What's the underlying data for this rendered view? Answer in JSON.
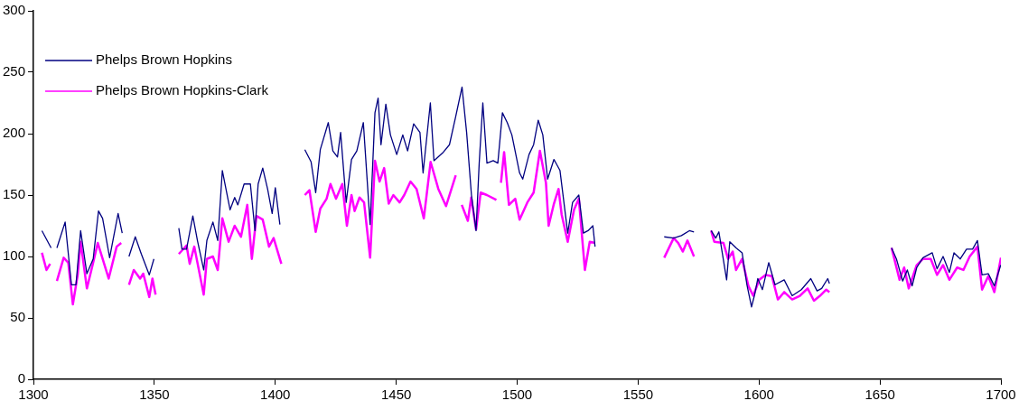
{
  "chart_data": {
    "type": "line",
    "xlim": [
      1300,
      1700
    ],
    "xticks": [
      1300,
      1350,
      1400,
      1450,
      1500,
      1550,
      1600,
      1650,
      1700
    ],
    "ylim": [
      0,
      300
    ],
    "yticks": [
      0,
      50,
      100,
      150,
      200,
      250,
      300
    ],
    "grid": false,
    "legend": "top left",
    "marker": "none",
    "line_style": "solid",
    "series": [
      {
        "name": "Phelps Brown Hopkins",
        "color": "#000080",
        "x": [
          1303.5,
          1307.3,
          1308.5,
          1309.7,
          1313.1,
          1315.7,
          1317.6,
          1319.5,
          1322.1,
          1324.7,
          1326.9,
          1328.6,
          1331.5,
          1335.0,
          1336.7,
          1338,
          1339.5,
          1342.1,
          1344.6,
          1347.9,
          1349.8,
          1355,
          1360.1,
          1361.4,
          1363.3,
          1365.9,
          1367.8,
          1370.4,
          1371.7,
          1374.2,
          1376.2,
          1378.1,
          1381.3,
          1383.2,
          1384.5,
          1387.1,
          1389.7,
          1391.6,
          1392.9,
          1394.8,
          1396.8,
          1398.7,
          1400.0,
          1401.9,
          1407,
          1412.2,
          1414.8,
          1416.7,
          1418.6,
          1421.9,
          1423.8,
          1425.7,
          1427.0,
          1429.3,
          1431.5,
          1433.7,
          1436.4,
          1439.2,
          1441.2,
          1442.5,
          1443.7,
          1445.7,
          1447.6,
          1450.2,
          1452.7,
          1454.7,
          1457.2,
          1459.8,
          1461.1,
          1464.1,
          1465.6,
          1469.5,
          1472.0,
          1474.6,
          1477.2,
          1479.1,
          1481.1,
          1483.0,
          1484.3,
          1485.8,
          1487.5,
          1490.1,
          1492.0,
          1493.9,
          1495.9,
          1497.8,
          1501.0,
          1502.3,
          1504.9,
          1506.8,
          1508.7,
          1510.6,
          1512.6,
          1515.2,
          1517.7,
          1520.9,
          1522.9,
          1525.5,
          1527.4,
          1529.3,
          1531.3,
          1532.2,
          1546,
          1560.8,
          1564.7,
          1567.9,
          1571.2,
          1573.1,
          1576,
          1580.2,
          1582.1,
          1583.4,
          1586.6,
          1587.9,
          1590.5,
          1593.0,
          1595.0,
          1596.9,
          1598.2,
          1599.5,
          1601.4,
          1604.0,
          1606.6,
          1610.4,
          1613.7,
          1617.5,
          1621.4,
          1624.0,
          1625.9,
          1628.4,
          1629.1,
          1641,
          1654.8,
          1656.8,
          1659.4,
          1661.3,
          1663.3,
          1665.2,
          1667.8,
          1671.6,
          1673.6,
          1676.1,
          1678.7,
          1680.6,
          1683.2,
          1685.8,
          1688.3,
          1690.3,
          1692.2,
          1694.8,
          1697.3,
          1699.9
        ],
        "values": [
          121,
          107,
          null,
          107,
          128,
          77,
          77,
          121,
          86,
          98,
          137,
          131,
          99,
          135,
          119,
          null,
          100,
          116,
          102,
          85,
          98,
          null,
          123,
          106,
          106,
          133,
          113,
          89,
          113,
          128,
          113,
          170,
          138,
          148,
          142,
          159,
          159,
          121,
          159,
          172,
          155,
          135,
          156,
          126,
          null,
          187,
          177,
          152,
          187,
          209,
          186,
          181,
          201,
          144,
          179,
          186,
          209,
          126,
          217,
          229,
          191,
          224,
          199,
          183,
          199,
          186,
          208,
          201,
          168,
          225,
          178,
          185,
          191,
          214,
          238,
          201,
          150,
          121,
          176,
          225,
          176,
          178,
          176,
          217,
          209,
          199,
          168,
          163,
          183,
          191,
          211,
          199,
          163,
          179,
          170,
          119,
          144,
          150,
          119,
          121,
          125,
          108,
          null,
          116,
          115,
          117,
          121,
          120,
          null,
          121,
          115,
          120,
          81,
          112,
          107,
          103,
          77,
          59,
          69,
          82,
          73,
          95,
          77,
          81,
          68,
          73,
          82,
          72,
          74,
          82,
          78,
          null,
          107,
          98,
          80,
          89,
          76,
          91,
          99,
          103,
          90,
          100,
          87,
          103,
          98,
          106,
          106,
          113,
          85,
          86,
          76,
          93
        ]
      },
      {
        "name": "Phelps Brown Hopkins-Clark",
        "color": "#ff00ff",
        "x": [
          1303.5,
          1305.4,
          1306.9,
          1308.5,
          1309.7,
          1312.5,
          1314.4,
          1316.3,
          1318.3,
          1319.5,
          1322.1,
          1324.7,
          1326.6,
          1331.1,
          1334.4,
          1336.3,
          1338,
          1339.5,
          1341.5,
          1344.1,
          1345.4,
          1347.9,
          1349.2,
          1350.5,
          1355,
          1360.1,
          1363.3,
          1364.6,
          1366.5,
          1370.4,
          1371.7,
          1374.2,
          1376.2,
          1378.1,
          1380.7,
          1383.2,
          1385.8,
          1388.4,
          1390.3,
          1392.2,
          1394.8,
          1397.4,
          1399.3,
          1402.5,
          1407,
          1412.2,
          1414.1,
          1416.7,
          1418.6,
          1421.2,
          1422.8,
          1425.1,
          1427.7,
          1429.6,
          1431.5,
          1432.8,
          1434.8,
          1436.7,
          1439.2,
          1441.2,
          1443.1,
          1445.0,
          1446.9,
          1448.8,
          1451.4,
          1453.3,
          1455.9,
          1458.4,
          1461.4,
          1464.2,
          1467.4,
          1470.6,
          1474.6,
          1476,
          1477.1,
          1479.6,
          1481.0,
          1483.0,
          1484.9,
          1487.5,
          1491.4,
          1492.4,
          1493.3,
          1494.6,
          1496.6,
          1499.2,
          1501.0,
          1504.2,
          1506.8,
          1509.4,
          1511.9,
          1513.0,
          1515.2,
          1517.1,
          1518.4,
          1520.9,
          1523.5,
          1525.5,
          1528.0,
          1530.0,
          1532.2,
          1546,
          1560.8,
          1564.7,
          1566.6,
          1568.5,
          1570.4,
          1573.1,
          1576,
          1580.2,
          1581.5,
          1585.3,
          1587.2,
          1589.1,
          1590.5,
          1593.0,
          1595.6,
          1597.6,
          1600.1,
          1602.7,
          1605.3,
          1607.8,
          1610.4,
          1613.7,
          1616.9,
          1620.1,
          1622.7,
          1625.2,
          1627.8,
          1629.1,
          1641,
          1654.8,
          1658.1,
          1660.0,
          1661.9,
          1665.2,
          1667.8,
          1671.0,
          1673.6,
          1676.1,
          1678.7,
          1681.9,
          1684.5,
          1687.1,
          1690.3,
          1692.2,
          1694.8,
          1697.3,
          1700
        ],
        "values": [
          103,
          89,
          94,
          null,
          80,
          99,
          95,
          61,
          85,
          112,
          74,
          95,
          111,
          82,
          108,
          111,
          null,
          77,
          89,
          82,
          86,
          67,
          82,
          69,
          null,
          102,
          109,
          94,
          108,
          69,
          98,
          100,
          89,
          131,
          112,
          125,
          116,
          142,
          98,
          133,
          130,
          108,
          115,
          94,
          null,
          150,
          154,
          120,
          139,
          147,
          159,
          147,
          159,
          125,
          150,
          137,
          148,
          144,
          99,
          178,
          161,
          172,
          143,
          150,
          144,
          150,
          161,
          155,
          131,
          177,
          155,
          141,
          166,
          null,
          142,
          129,
          148,
          122,
          152,
          150,
          146,
          null,
          160,
          185,
          142,
          147,
          130,
          144,
          152,
          186,
          160,
          125,
          143,
          155,
          134,
          112,
          138,
          147,
          89,
          112,
          111,
          null,
          99,
          115,
          111,
          104,
          113,
          100,
          null,
          121,
          112,
          111,
          98,
          104,
          89,
          98,
          76,
          68,
          81,
          85,
          84,
          65,
          71,
          65,
          68,
          74,
          64,
          68,
          73,
          71,
          null,
          107,
          81,
          91,
          74,
          93,
          98,
          98,
          85,
          93,
          81,
          91,
          89,
          100,
          108,
          73,
          84,
          71,
          99
        ]
      }
    ]
  }
}
